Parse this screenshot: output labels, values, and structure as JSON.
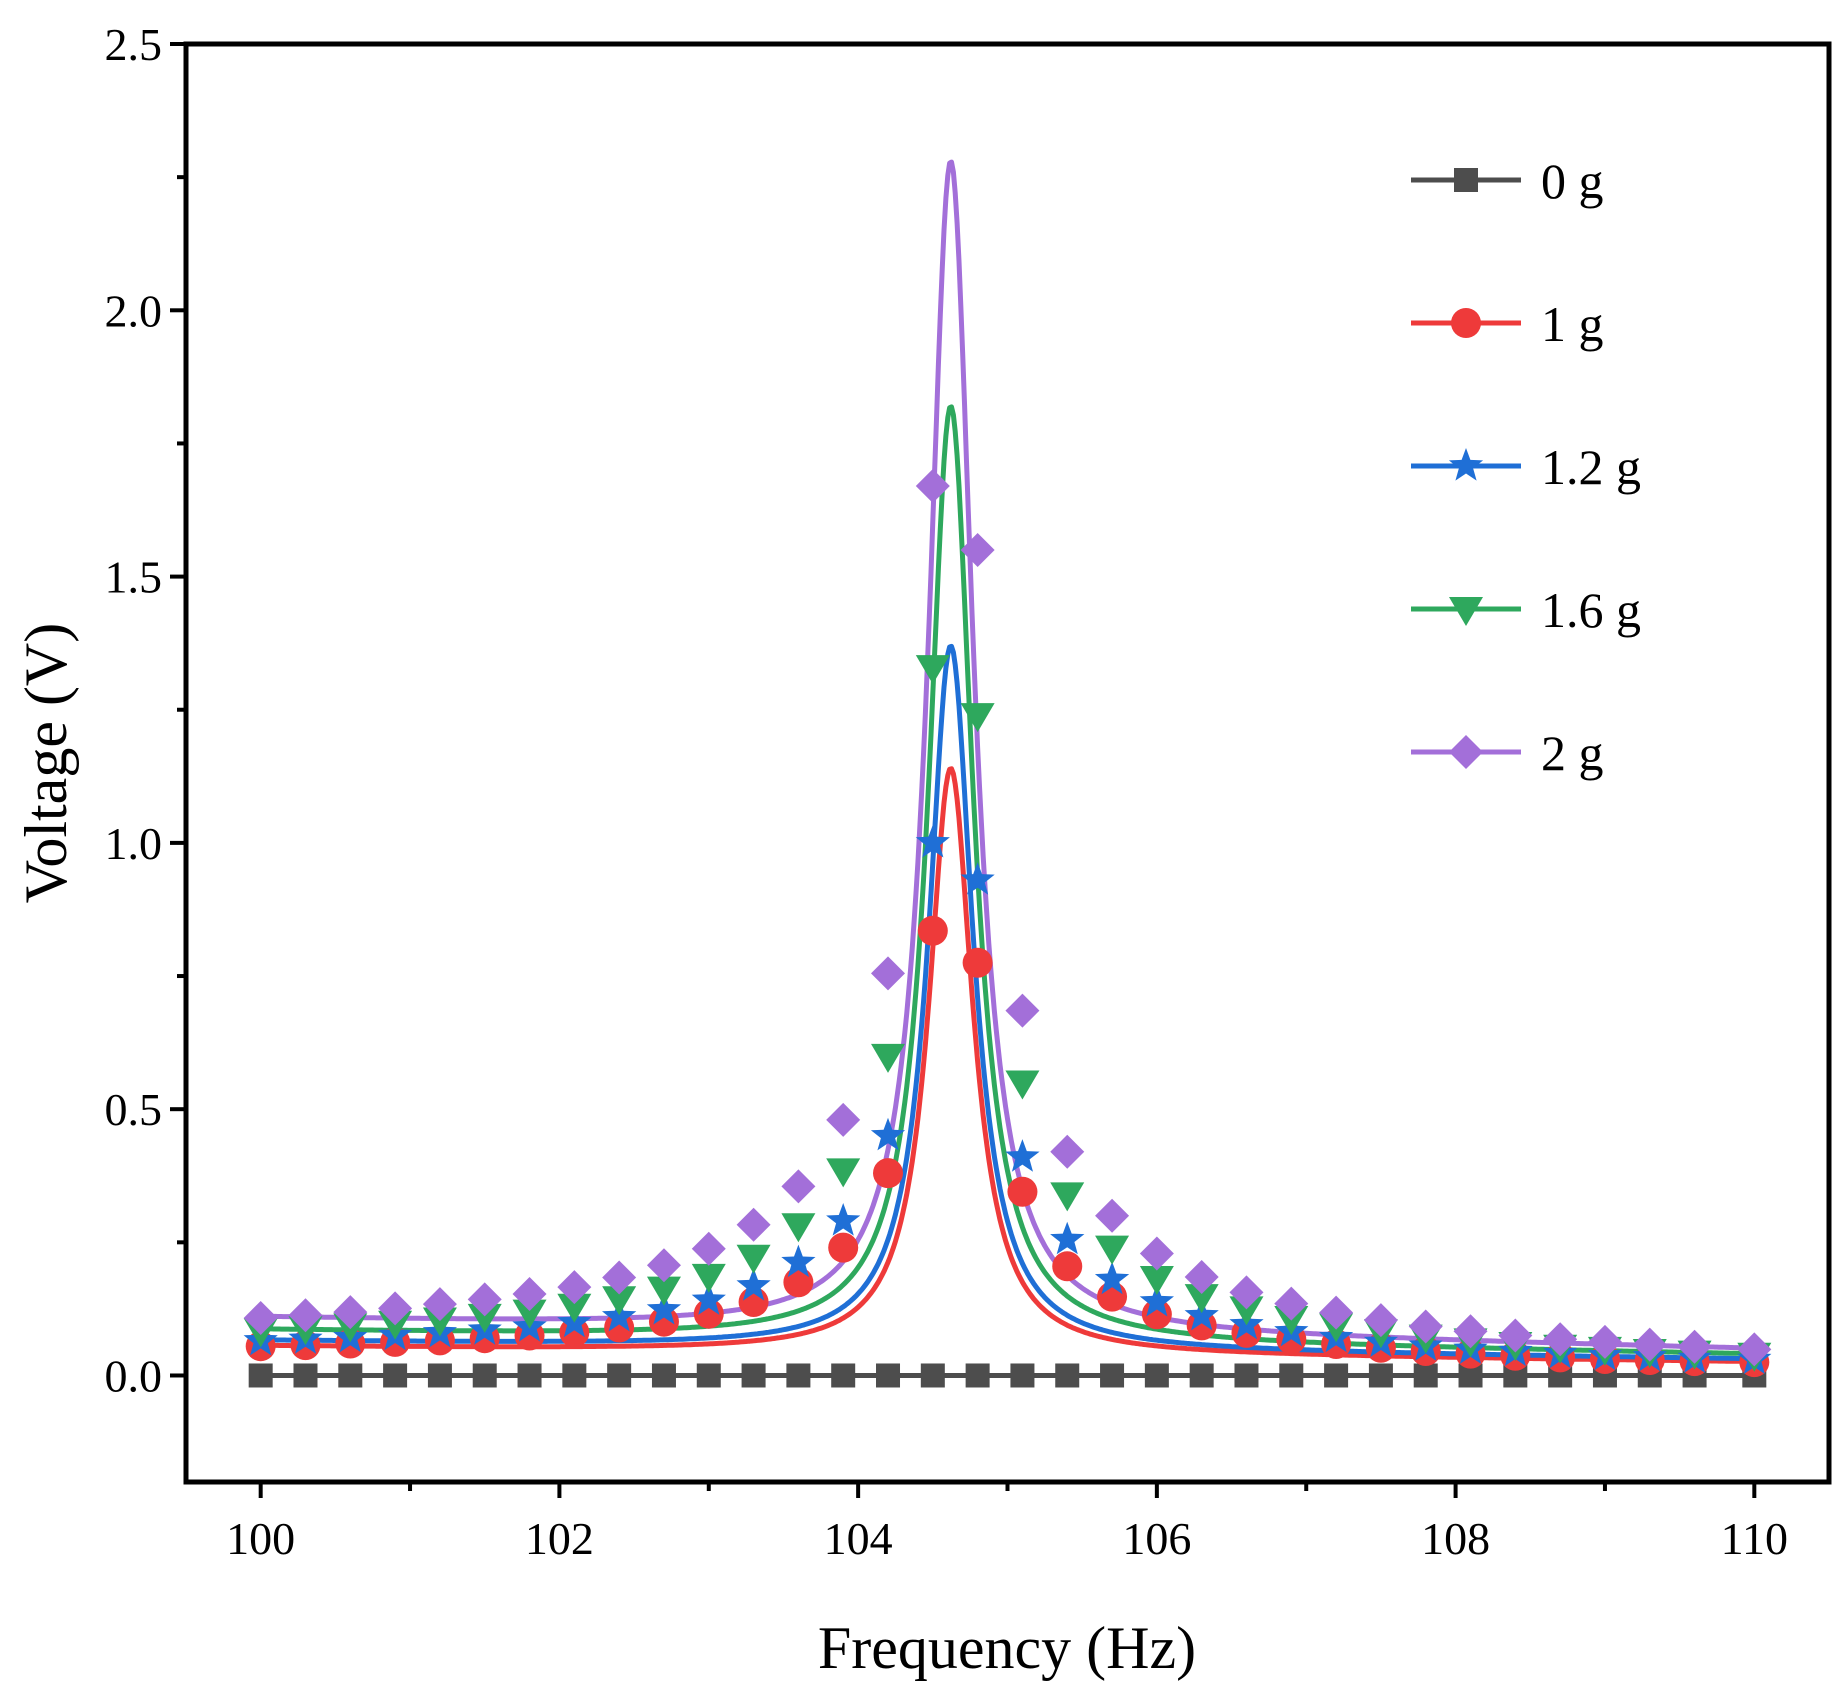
{
  "chart_data": {
    "type": "line",
    "title": "",
    "xlabel": "Frequency (Hz)",
    "ylabel": "Voltage (V)",
    "xlim": [
      99.5,
      110.5
    ],
    "ylim": [
      -0.2,
      2.5
    ],
    "xticks": [
      100,
      102,
      104,
      106,
      108,
      110
    ],
    "xtick_labels": [
      "100",
      "102",
      "104",
      "106",
      "108",
      "110"
    ],
    "yticks": [
      0.0,
      0.5,
      1.0,
      1.5,
      2.0,
      2.5
    ],
    "ytick_labels": [
      "0.0",
      "0.5",
      "1.0",
      "1.5",
      "2.0",
      "2.5"
    ],
    "grid": false,
    "legend_position": "top-right",
    "resonance": {
      "f0": 104.62,
      "gamma": 0.18
    },
    "series": [
      {
        "name": "0 g",
        "label": "0 g",
        "color": "#4d4d4d",
        "marker": "square",
        "peak": 0.0,
        "x": [
          100.0,
          100.3,
          100.6,
          100.9,
          101.2,
          101.5,
          101.8,
          102.1,
          102.4,
          102.7,
          103.0,
          103.3,
          103.6,
          103.9,
          104.2,
          104.5,
          104.8,
          105.1,
          105.4,
          105.7,
          106.0,
          106.3,
          106.6,
          106.9,
          107.2,
          107.5,
          107.8,
          108.1,
          108.4,
          108.7,
          109.0,
          109.3,
          109.6,
          110.0
        ],
        "y": [
          0,
          0,
          0,
          0,
          0,
          0,
          0,
          0,
          0,
          0,
          0,
          0,
          0,
          0,
          0,
          0,
          0,
          0,
          0,
          0,
          0,
          0,
          0,
          0,
          0,
          0,
          0,
          0,
          0,
          0,
          0,
          0,
          0,
          0
        ]
      },
      {
        "name": "1 g",
        "label": "1 g",
        "color": "#ee3a3a",
        "marker": "circle",
        "peak": 1.14,
        "x": [
          100.0,
          100.3,
          100.6,
          100.9,
          101.2,
          101.5,
          101.8,
          102.1,
          102.4,
          102.7,
          103.0,
          103.3,
          103.6,
          103.9,
          104.2,
          104.5,
          104.8,
          105.1,
          105.4,
          105.7,
          106.0,
          106.3,
          106.6,
          106.9,
          107.2,
          107.5,
          107.8,
          108.1,
          108.4,
          108.7,
          109.0,
          109.3,
          109.6,
          110.0
        ],
        "y": [
          0.055,
          0.057,
          0.06,
          0.063,
          0.066,
          0.07,
          0.075,
          0.081,
          0.09,
          0.101,
          0.116,
          0.138,
          0.175,
          0.24,
          0.38,
          0.835,
          0.775,
          0.345,
          0.205,
          0.148,
          0.115,
          0.094,
          0.08,
          0.068,
          0.059,
          0.052,
          0.046,
          0.041,
          0.037,
          0.034,
          0.031,
          0.029,
          0.027,
          0.025
        ]
      },
      {
        "name": "1.2 g",
        "label": "1.2 g",
        "color": "#1f6fd6",
        "marker": "star",
        "peak": 1.37,
        "x": [
          100.0,
          100.3,
          100.6,
          100.9,
          101.2,
          101.5,
          101.8,
          102.1,
          102.4,
          102.7,
          103.0,
          103.3,
          103.6,
          103.9,
          104.2,
          104.5,
          104.8,
          105.1,
          105.4,
          105.7,
          106.0,
          106.3,
          106.6,
          106.9,
          107.2,
          107.5,
          107.8,
          108.1,
          108.4,
          108.7,
          109.0,
          109.3,
          109.6,
          110.0
        ],
        "y": [
          0.065,
          0.068,
          0.071,
          0.075,
          0.08,
          0.085,
          0.091,
          0.099,
          0.11,
          0.123,
          0.141,
          0.168,
          0.212,
          0.29,
          0.45,
          1.0,
          0.93,
          0.41,
          0.255,
          0.18,
          0.138,
          0.112,
          0.095,
          0.082,
          0.071,
          0.062,
          0.055,
          0.049,
          0.045,
          0.041,
          0.037,
          0.035,
          0.032,
          0.03
        ]
      },
      {
        "name": "1.6 g",
        "label": "1.6 g",
        "color": "#2ea85d",
        "marker": "triangle-down",
        "peak": 1.82,
        "x": [
          100.0,
          100.3,
          100.6,
          100.9,
          101.2,
          101.5,
          101.8,
          102.1,
          102.4,
          102.7,
          103.0,
          103.3,
          103.6,
          103.9,
          104.2,
          104.5,
          104.8,
          105.1,
          105.4,
          105.7,
          106.0,
          106.3,
          106.6,
          106.9,
          107.2,
          107.5,
          107.8,
          108.1,
          108.4,
          108.7,
          109.0,
          109.3,
          109.6,
          110.0
        ],
        "y": [
          0.085,
          0.089,
          0.094,
          0.099,
          0.105,
          0.112,
          0.12,
          0.131,
          0.145,
          0.163,
          0.187,
          0.223,
          0.282,
          0.385,
          0.6,
          1.33,
          1.24,
          0.55,
          0.34,
          0.24,
          0.183,
          0.149,
          0.126,
          0.108,
          0.094,
          0.083,
          0.073,
          0.066,
          0.059,
          0.054,
          0.05,
          0.046,
          0.043,
          0.039
        ]
      },
      {
        "name": "2 g",
        "label": "2 g",
        "color": "#a36fd9",
        "marker": "diamond",
        "peak": 2.28,
        "x": [
          100.0,
          100.3,
          100.6,
          100.9,
          101.2,
          101.5,
          101.8,
          102.1,
          102.4,
          102.7,
          103.0,
          103.3,
          103.6,
          103.9,
          104.2,
          104.5,
          104.8,
          105.1,
          105.4,
          105.7,
          106.0,
          106.3,
          106.6,
          106.9,
          107.2,
          107.5,
          107.8,
          108.1,
          108.4,
          108.7,
          109.0,
          109.3,
          109.6,
          110.0
        ],
        "y": [
          0.108,
          0.113,
          0.119,
          0.126,
          0.134,
          0.143,
          0.153,
          0.166,
          0.184,
          0.207,
          0.238,
          0.283,
          0.355,
          0.48,
          0.755,
          1.67,
          1.55,
          0.685,
          0.42,
          0.3,
          0.229,
          0.185,
          0.156,
          0.135,
          0.118,
          0.104,
          0.092,
          0.083,
          0.075,
          0.068,
          0.063,
          0.058,
          0.054,
          0.049
        ]
      }
    ]
  }
}
